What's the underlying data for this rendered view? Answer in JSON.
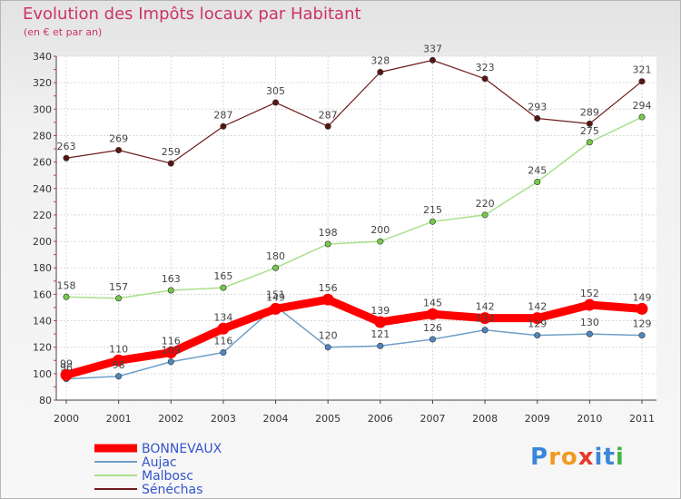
{
  "title": "Evolution des Impôts locaux par Habitant",
  "subtitle": "(en € et par an)",
  "logo": {
    "text": "Proxiti",
    "colors": [
      "#3a86d8",
      "#f29a1f",
      "#e53b2e",
      "#41b649"
    ]
  },
  "chart_data": {
    "type": "line",
    "title": "Evolution des Impôts locaux par Habitant",
    "subtitle": "(en € et par an)",
    "x": [
      "2000",
      "2001",
      "2002",
      "2003",
      "2004",
      "2005",
      "2006",
      "2007",
      "2008",
      "2009",
      "2010",
      "2011"
    ],
    "ylim": [
      80,
      340
    ],
    "yticks": [
      80,
      100,
      120,
      140,
      160,
      180,
      200,
      220,
      240,
      260,
      280,
      300,
      320,
      340
    ],
    "grid": true,
    "legend_position": "bottom-left",
    "series": [
      {
        "name": "Sénéchas",
        "color": "#6e1b1b",
        "marker": "#5a1414",
        "values": [
          263,
          269,
          259,
          287,
          305,
          287,
          328,
          337,
          323,
          293,
          289,
          321
        ],
        "labels": [
          "263",
          "269",
          "259",
          "287",
          "305",
          "287",
          "328",
          "337",
          "323",
          "293",
          "289",
          "321"
        ]
      },
      {
        "name": "Malbosc",
        "color": "#a9e08a",
        "marker": "#77c94a",
        "values": [
          158,
          157,
          163,
          165,
          180,
          198,
          200,
          215,
          220,
          245,
          275,
          294
        ],
        "labels": [
          "158",
          "157",
          "163",
          "165",
          "180",
          "198",
          "200",
          "215",
          "220",
          "245",
          "275",
          "294"
        ]
      },
      {
        "name": "Aujac",
        "color": "#6f9fc8",
        "marker": "#4f86be",
        "values": [
          96,
          98,
          109,
          116,
          151,
          120,
          121,
          126,
          133,
          129,
          130,
          129
        ],
        "labels": [
          "96",
          "98",
          "109",
          "116",
          "151",
          "120",
          "121",
          "126",
          "133",
          "129",
          "130",
          "129"
        ]
      },
      {
        "name": "BONNEVAUX",
        "color": "#ff0000",
        "marker": "#ff0000",
        "values": [
          99,
          110,
          116,
          134,
          149,
          156,
          139,
          145,
          142,
          142,
          152,
          149
        ],
        "labels": [
          "99",
          "110",
          "116",
          "134",
          "149",
          "156",
          "139",
          "145",
          "142",
          "142",
          "152",
          "149"
        ]
      }
    ],
    "legend": [
      "BONNEVAUX",
      "Aujac",
      "Malbosc",
      "Sénéchas"
    ]
  }
}
